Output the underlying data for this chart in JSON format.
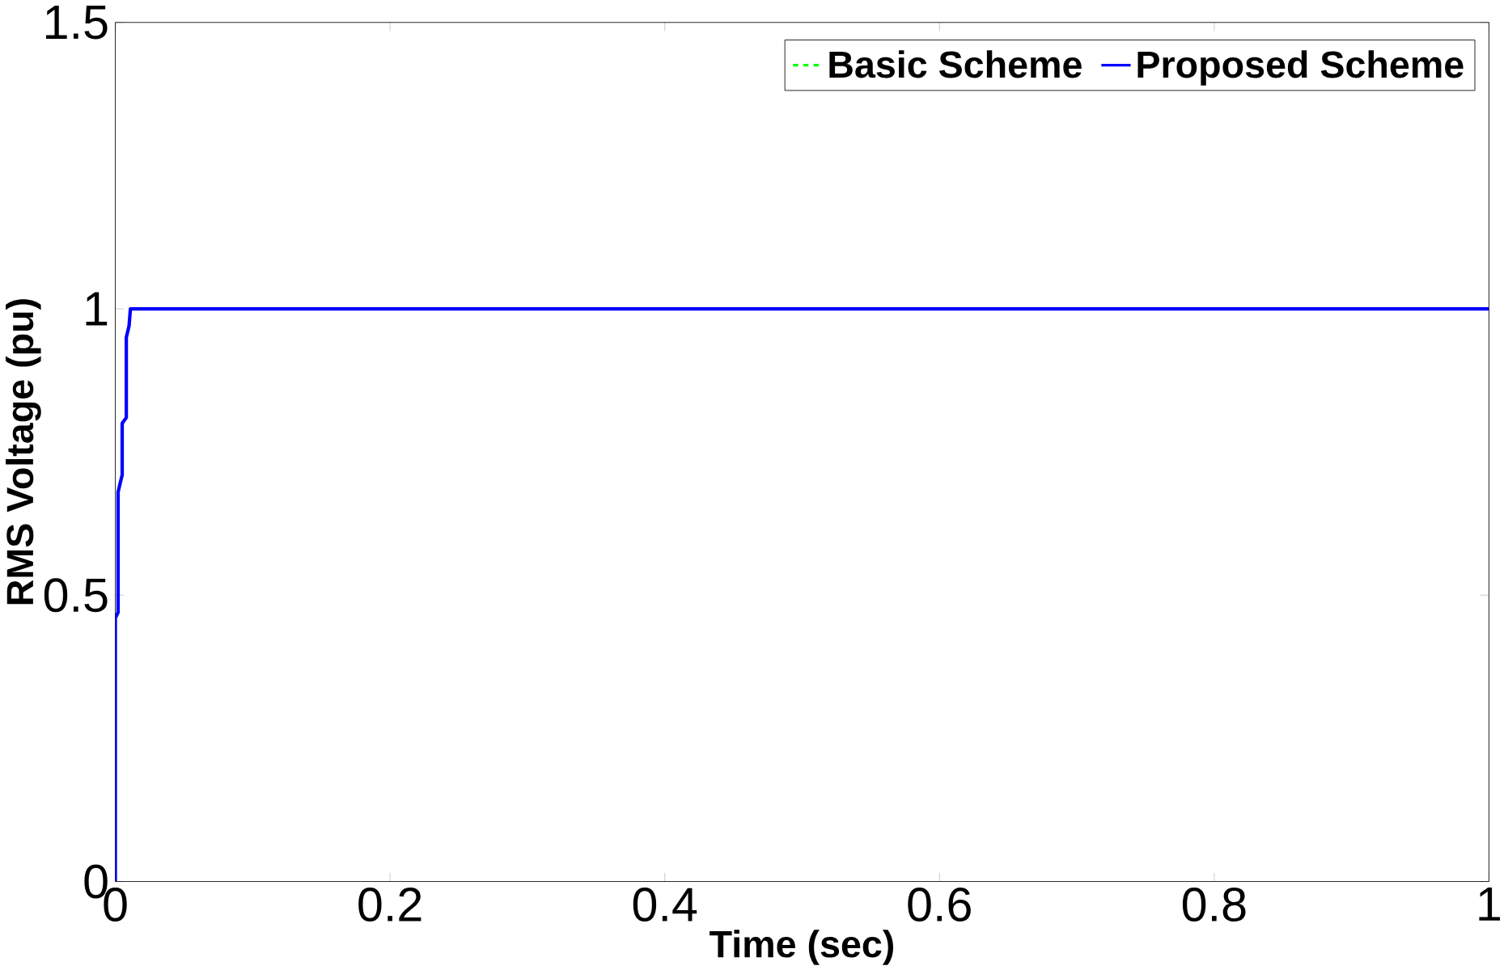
{
  "chart_data": {
    "type": "line",
    "xlabel": "Time (sec)",
    "ylabel": "RMS Voltage (pu)",
    "xlim": [
      0,
      1
    ],
    "ylim": [
      0,
      1.5
    ],
    "xticks": [
      0,
      0.2,
      0.4,
      0.6,
      0.8,
      1
    ],
    "yticks": [
      0,
      0.5,
      1,
      1.5
    ],
    "grid": false,
    "legend": "top right",
    "series": [
      {
        "name": "Basic Scheme",
        "color": "#00ff00",
        "line_style": "dashed"
      },
      {
        "name": "Proposed Scheme",
        "color": "#0000ff",
        "line_style": "solid",
        "x": [
          0,
          0,
          0.002,
          0.002,
          0.004,
          0.005,
          0.005,
          0.008,
          0.008,
          0.01,
          0.011,
          1
        ],
        "values": [
          0,
          0.46,
          0.47,
          0.68,
          0.7,
          0.71,
          0.8,
          0.81,
          0.95,
          0.97,
          1.0,
          1.0
        ]
      }
    ]
  }
}
